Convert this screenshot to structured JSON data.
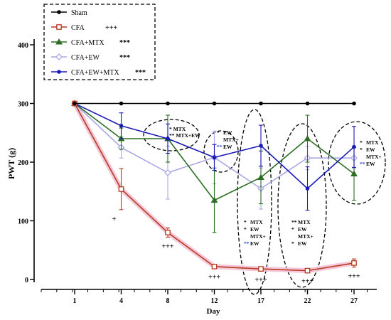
{
  "chart_data": {
    "type": "line",
    "xlabel": "Day",
    "ylabel": "PWT (g)",
    "ylim": [
      0,
      400
    ],
    "x_ticks": [
      1,
      4,
      8,
      12,
      17,
      22,
      27
    ],
    "y_ticks": [
      0,
      100,
      200,
      300,
      400
    ],
    "grid": false,
    "legend_position": "top-left",
    "series": [
      {
        "name": "Sham",
        "marker": "circle",
        "color": "#000000",
        "sig": "",
        "values": [
          300,
          300,
          300,
          300,
          300,
          300,
          300
        ],
        "err": [
          0,
          0,
          0,
          0,
          0,
          0,
          0
        ]
      },
      {
        "name": "CFA",
        "marker": "square",
        "color": "#b83a22",
        "sig": "+++",
        "values": [
          300,
          154,
          80,
          22,
          18,
          15,
          28
        ],
        "err": [
          0,
          35,
          8,
          2,
          3,
          2,
          7
        ]
      },
      {
        "name": "CFA+MTX",
        "marker": "triangle",
        "color": "#2c6e24",
        "sig": "***",
        "values": [
          300,
          240,
          240,
          135,
          174,
          240,
          180
        ],
        "err": [
          0,
          18,
          40,
          55,
          45,
          40,
          45
        ]
      },
      {
        "name": "CFA+EW",
        "marker": "diamond",
        "color": "#a9a9e6",
        "sig": "***",
        "values": [
          300,
          225,
          182,
          208,
          155,
          207,
          207
        ],
        "err": [
          0,
          18,
          45,
          45,
          35,
          20,
          18
        ]
      },
      {
        "name": "CFA+EW+MTX",
        "marker": "circle",
        "color": "#1a1ab8",
        "sig": "***",
        "values": [
          300,
          262,
          240,
          208,
          228,
          155,
          226
        ],
        "err": [
          0,
          22,
          25,
          22,
          35,
          37,
          35
        ]
      }
    ],
    "cfa_annotations": [
      {
        "day": 4,
        "text": "+"
      },
      {
        "day": 8,
        "text": "+++"
      },
      {
        "day": 12,
        "text": "+++"
      },
      {
        "day": 17,
        "text": "+++"
      },
      {
        "day": 22,
        "text": "+++"
      },
      {
        "day": 27,
        "text": "+++"
      }
    ],
    "group_annotations": [
      {
        "day": 8,
        "lines": [
          [
            "*",
            "MTX"
          ],
          [
            "**",
            "MTX+EW"
          ]
        ]
      },
      {
        "day": 12,
        "lines": [
          [
            "*",
            "EW"
          ],
          [
            "",
            "MTX+"
          ],
          [
            "**",
            "EW"
          ]
        ]
      },
      {
        "day": 17,
        "lines": [
          [
            "*",
            "MTX"
          ],
          [
            "*",
            "EW"
          ],
          [
            "",
            "MTX+"
          ],
          [
            "**",
            "EW"
          ]
        ]
      },
      {
        "day": 22,
        "lines": [
          [
            "**",
            "MTX"
          ],
          [
            "*",
            "EW"
          ],
          [
            "",
            "MTX+"
          ],
          [
            "*",
            "EW"
          ]
        ]
      },
      {
        "day": 27,
        "lines": [
          [
            "*",
            "MTX"
          ],
          [
            "*",
            "EW"
          ],
          [
            "",
            "MTX+"
          ],
          [
            "**",
            "EW"
          ]
        ]
      }
    ]
  }
}
